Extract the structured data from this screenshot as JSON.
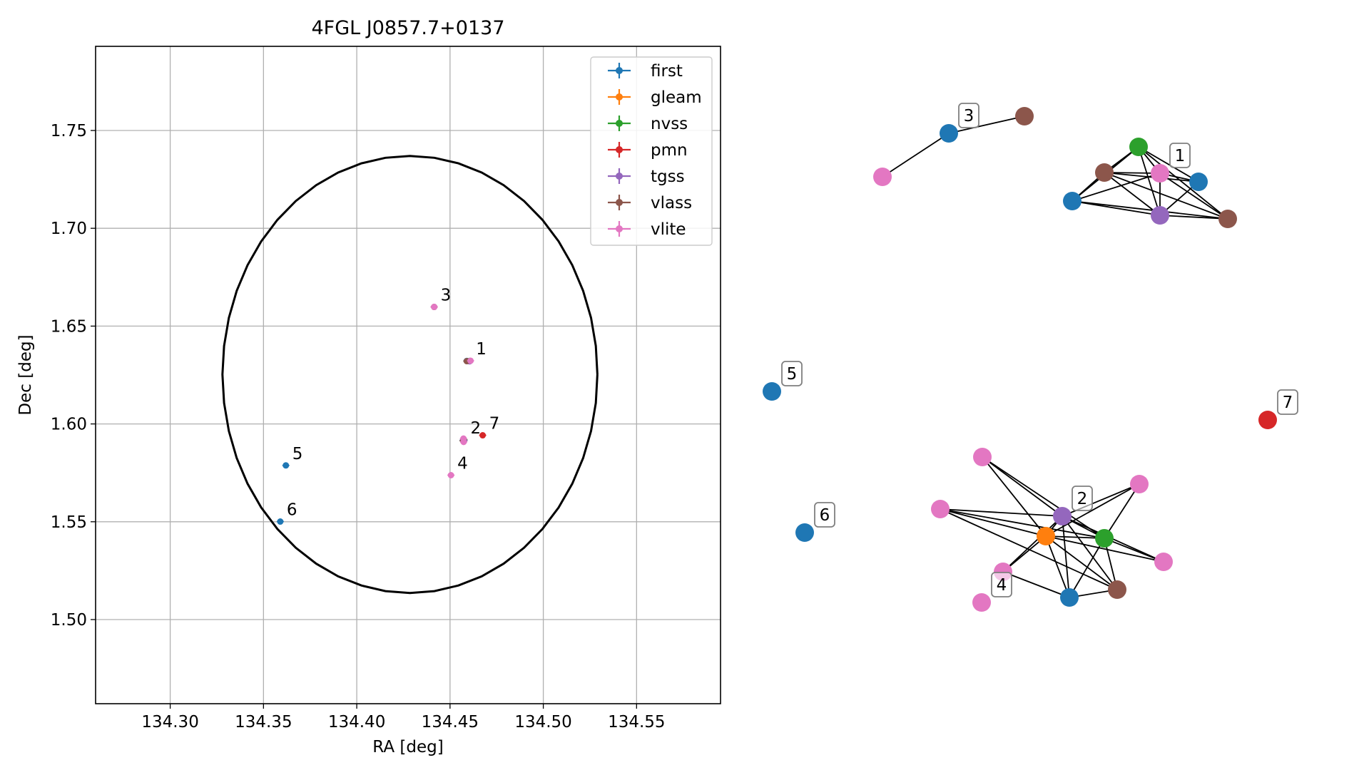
{
  "chart_data": [
    {
      "type": "scatter",
      "title": "4FGL J0857.7+0137",
      "xlabel": "RA [deg]",
      "ylabel": "Dec [deg]",
      "xlim": [
        134.26,
        134.595
      ],
      "ylim": [
        1.457,
        1.793
      ],
      "xticks": [
        134.3,
        134.35,
        134.4,
        134.45,
        134.5,
        134.55
      ],
      "xtick_labels": [
        "134.30",
        "134.35",
        "134.40",
        "134.45",
        "134.50",
        "134.55"
      ],
      "yticks": [
        1.5,
        1.55,
        1.6,
        1.65,
        1.7,
        1.75
      ],
      "ytick_labels": [
        "1.50",
        "1.55",
        "1.60",
        "1.65",
        "1.70",
        "1.75"
      ],
      "grid": true,
      "legend_position": "top-right",
      "ellipse": {
        "center": [
          134.4285,
          1.6253
        ],
        "semi_axis_ra": 0.1005,
        "semi_axis_dec": 0.1117,
        "color": "#000000"
      },
      "series": [
        {
          "name": "first",
          "color": "#1f77b4",
          "points": [
            [
              134.457,
              1.5916
            ],
            [
              134.459,
              1.6322
            ],
            [
              134.362,
              1.5788
            ],
            [
              134.359,
              1.5501
            ]
          ]
        },
        {
          "name": "gleam",
          "color": "#ff7f0e",
          "points": [
            [
              134.4575,
              1.5918
            ]
          ]
        },
        {
          "name": "nvss",
          "color": "#2ca02c",
          "points": [
            [
              134.4575,
              1.5918
            ],
            [
              134.4605,
              1.6322
            ]
          ]
        },
        {
          "name": "pmn",
          "color": "#d62728",
          "points": [
            [
              134.4675,
              1.5942
            ]
          ]
        },
        {
          "name": "tgss",
          "color": "#9467bd",
          "points": [
            [
              134.4575,
              1.5915
            ],
            [
              134.4605,
              1.632
            ]
          ]
        },
        {
          "name": "vlass",
          "color": "#8c564b",
          "points": [
            [
              134.457,
              1.5914
            ],
            [
              134.459,
              1.6321
            ],
            [
              134.4415,
              1.6598
            ]
          ]
        },
        {
          "name": "vlite",
          "color": "#e377c2",
          "points": [
            [
              134.4572,
              1.5925
            ],
            [
              134.4573,
              1.5908
            ],
            [
              134.461,
              1.6323
            ],
            [
              134.4415,
              1.6598
            ],
            [
              134.4505,
              1.5738
            ]
          ]
        }
      ],
      "annotations": [
        {
          "text": "1",
          "x": 134.4605,
          "y": 1.6322
        },
        {
          "text": "2",
          "x": 134.4575,
          "y": 1.5918
        },
        {
          "text": "3",
          "x": 134.4415,
          "y": 1.6598
        },
        {
          "text": "4",
          "x": 134.4505,
          "y": 1.5738
        },
        {
          "text": "5",
          "x": 134.362,
          "y": 1.5788
        },
        {
          "text": "6",
          "x": 134.359,
          "y": 1.5501
        },
        {
          "text": "7",
          "x": 134.4675,
          "y": 1.5942
        }
      ]
    },
    {
      "type": "network",
      "node_types": {
        "first": "#1f77b4",
        "gleam": "#ff7f0e",
        "nvss": "#2ca02c",
        "pmn": "#d62728",
        "tgss": "#9467bd",
        "vlass": "#8c564b",
        "vlite": "#e377c2"
      },
      "clusters": [
        {
          "label": "1",
          "label_anchor": "c1_vlite"
        },
        {
          "label": "2",
          "label_anchor": "c2_tgss"
        },
        {
          "label": "3",
          "label_anchor": "c3_first"
        },
        {
          "label": "4",
          "label_anchor": "c4_vlite"
        },
        {
          "label": "5",
          "label_anchor": "c5_first"
        },
        {
          "label": "6",
          "label_anchor": "c6_first"
        },
        {
          "label": "7",
          "label_anchor": "c7_pmn"
        }
      ],
      "nodes": [
        {
          "id": "c1_nvss",
          "catalog": "nvss"
        },
        {
          "id": "c1_vlite",
          "catalog": "vlite"
        },
        {
          "id": "c1_vlass_a",
          "catalog": "vlass"
        },
        {
          "id": "c1_first_a",
          "catalog": "first"
        },
        {
          "id": "c1_first_b",
          "catalog": "first"
        },
        {
          "id": "c1_tgss",
          "catalog": "tgss"
        },
        {
          "id": "c1_vlass_b",
          "catalog": "vlass"
        },
        {
          "id": "c3_vlite",
          "catalog": "vlite"
        },
        {
          "id": "c3_first",
          "catalog": "first"
        },
        {
          "id": "c3_vlass",
          "catalog": "vlass"
        },
        {
          "id": "c5_first",
          "catalog": "first"
        },
        {
          "id": "c6_first",
          "catalog": "first"
        },
        {
          "id": "c7_pmn",
          "catalog": "pmn"
        },
        {
          "id": "c2_vlite_a",
          "catalog": "vlite"
        },
        {
          "id": "c2_vlite_b",
          "catalog": "vlite"
        },
        {
          "id": "c2_vlite_c",
          "catalog": "vlite"
        },
        {
          "id": "c2_vlite_d",
          "catalog": "vlite"
        },
        {
          "id": "c2_vlite_e",
          "catalog": "vlite"
        },
        {
          "id": "c2_tgss",
          "catalog": "tgss"
        },
        {
          "id": "c2_gleam",
          "catalog": "gleam"
        },
        {
          "id": "c2_nvss",
          "catalog": "nvss"
        },
        {
          "id": "c2_first",
          "catalog": "first"
        },
        {
          "id": "c2_vlass",
          "catalog": "vlass"
        },
        {
          "id": "c4_vlite",
          "catalog": "vlite"
        }
      ],
      "edges": [
        [
          "c3_vlite",
          "c3_first"
        ],
        [
          "c3_first",
          "c3_vlass"
        ],
        [
          "c1_nvss",
          "c1_vlass_a"
        ],
        [
          "c1_nvss",
          "c1_first_a"
        ],
        [
          "c1_nvss",
          "c1_vlite"
        ],
        [
          "c1_nvss",
          "c1_first_b"
        ],
        [
          "c1_nvss",
          "c1_vlass_b"
        ],
        [
          "c1_nvss",
          "c1_tgss"
        ],
        [
          "c1_vlass_a",
          "c1_vlite"
        ],
        [
          "c1_vlass_a",
          "c1_first_a"
        ],
        [
          "c1_vlass_a",
          "c1_tgss"
        ],
        [
          "c1_vlass_a",
          "c1_first_b"
        ],
        [
          "c1_vlass_a",
          "c1_vlass_b"
        ],
        [
          "c1_first_a",
          "c1_tgss"
        ],
        [
          "c1_first_a",
          "c1_vlite"
        ],
        [
          "c1_vlite",
          "c1_tgss"
        ],
        [
          "c1_vlite",
          "c1_first_b"
        ],
        [
          "c1_vlite",
          "c1_vlass_b"
        ],
        [
          "c1_tgss",
          "c1_first_b"
        ],
        [
          "c1_tgss",
          "c1_vlass_b"
        ],
        [
          "c1_first_b",
          "c1_vlass_b"
        ],
        [
          "c2_vlite_a",
          "c2_tgss"
        ],
        [
          "c2_vlite_a",
          "c2_nvss"
        ],
        [
          "c2_vlite_a",
          "c2_gleam"
        ],
        [
          "c2_vlite_b",
          "c2_tgss"
        ],
        [
          "c2_vlite_b",
          "c2_nvss"
        ],
        [
          "c2_vlite_b",
          "c2_gleam"
        ],
        [
          "c2_vlite_b",
          "c2_vlass"
        ],
        [
          "c2_vlite_c",
          "c2_tgss"
        ],
        [
          "c2_vlite_c",
          "c2_gleam"
        ],
        [
          "c2_vlite_c",
          "c2_first"
        ],
        [
          "c2_vlite_d",
          "c2_tgss"
        ],
        [
          "c2_vlite_d",
          "c2_gleam"
        ],
        [
          "c2_vlite_d",
          "c2_nvss"
        ],
        [
          "c2_vlite_e",
          "c2_tgss"
        ],
        [
          "c2_vlite_e",
          "c2_gleam"
        ],
        [
          "c2_vlite_e",
          "c2_nvss"
        ],
        [
          "c2_tgss",
          "c2_gleam"
        ],
        [
          "c2_tgss",
          "c2_nvss"
        ],
        [
          "c2_tgss",
          "c2_first"
        ],
        [
          "c2_tgss",
          "c2_vlass"
        ],
        [
          "c2_gleam",
          "c2_nvss"
        ],
        [
          "c2_gleam",
          "c2_first"
        ],
        [
          "c2_gleam",
          "c2_vlass"
        ],
        [
          "c2_nvss",
          "c2_first"
        ],
        [
          "c2_nvss",
          "c2_vlass"
        ],
        [
          "c2_first",
          "c2_vlass"
        ]
      ]
    }
  ]
}
